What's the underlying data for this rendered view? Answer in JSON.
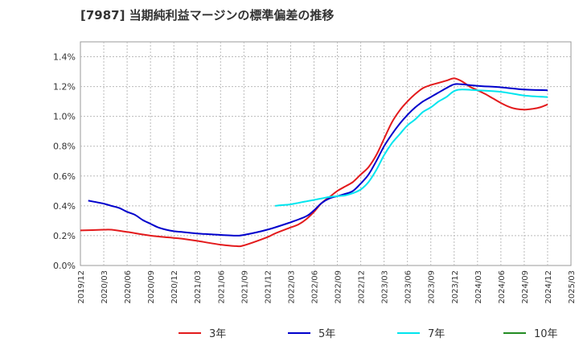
{
  "chart_data": {
    "type": "line",
    "title": "[7987]  当期純利益マージンの標準偏差の推移",
    "xlabel": "",
    "ylabel": "",
    "x_ticks": [
      "2019/12",
      "2020/03",
      "2020/06",
      "2020/09",
      "2020/12",
      "2021/03",
      "2021/06",
      "2021/09",
      "2021/12",
      "2022/03",
      "2022/06",
      "2022/09",
      "2022/12",
      "2023/03",
      "2023/06",
      "2023/09",
      "2023/12",
      "2024/03",
      "2024/06",
      "2024/09",
      "2024/12",
      "2025/03"
    ],
    "y_ticks": [
      "0.0%",
      "0.2%",
      "0.4%",
      "0.6%",
      "0.8%",
      "1.0%",
      "1.2%",
      "1.4%"
    ],
    "ylim": [
      0,
      1.5
    ],
    "grid": true,
    "legend": "bottom",
    "series": [
      {
        "name": "3年",
        "color": "#e31a1c",
        "values": [
          [
            "2019/12",
            0.235
          ],
          [
            "2020/03",
            0.24
          ],
          [
            "2020/04",
            0.24
          ],
          [
            "2020/06",
            0.225
          ],
          [
            "2020/09",
            0.2
          ],
          [
            "2020/12",
            0.185
          ],
          [
            "2021/01",
            0.18
          ],
          [
            "2021/03",
            0.165
          ],
          [
            "2021/06",
            0.14
          ],
          [
            "2021/08",
            0.13
          ],
          [
            "2021/09",
            0.135
          ],
          [
            "2021/12",
            0.19
          ],
          [
            "2022/01",
            0.215
          ],
          [
            "2022/03",
            0.255
          ],
          [
            "2022/04",
            0.275
          ],
          [
            "2022/05",
            0.31
          ],
          [
            "2022/06",
            0.36
          ],
          [
            "2022/07",
            0.42
          ],
          [
            "2022/08",
            0.46
          ],
          [
            "2022/09",
            0.5
          ],
          [
            "2022/10",
            0.53
          ],
          [
            "2022/11",
            0.56
          ],
          [
            "2022/12",
            0.61
          ],
          [
            "2023/01",
            0.66
          ],
          [
            "2023/02",
            0.74
          ],
          [
            "2023/03",
            0.85
          ],
          [
            "2023/04",
            0.96
          ],
          [
            "2023/05",
            1.04
          ],
          [
            "2023/06",
            1.1
          ],
          [
            "2023/07",
            1.15
          ],
          [
            "2023/08",
            1.19
          ],
          [
            "2023/09",
            1.21
          ],
          [
            "2023/10",
            1.225
          ],
          [
            "2023/11",
            1.24
          ],
          [
            "2023/12",
            1.255
          ],
          [
            "2024/01",
            1.235
          ],
          [
            "2024/02",
            1.2
          ],
          [
            "2024/03",
            1.175
          ],
          [
            "2024/04",
            1.15
          ],
          [
            "2024/05",
            1.12
          ],
          [
            "2024/06",
            1.09
          ],
          [
            "2024/07",
            1.065
          ],
          [
            "2024/08",
            1.05
          ],
          [
            "2024/09",
            1.045
          ],
          [
            "2024/10",
            1.05
          ],
          [
            "2024/11",
            1.06
          ],
          [
            "2024/12",
            1.08
          ]
        ]
      },
      {
        "name": "5年",
        "color": "#0000cc",
        "values": [
          [
            "2020/01",
            0.435
          ],
          [
            "2020/02",
            0.425
          ],
          [
            "2020/03",
            0.415
          ],
          [
            "2020/04",
            0.4
          ],
          [
            "2020/05",
            0.385
          ],
          [
            "2020/06",
            0.36
          ],
          [
            "2020/07",
            0.34
          ],
          [
            "2020/08",
            0.305
          ],
          [
            "2020/09",
            0.28
          ],
          [
            "2020/10",
            0.255
          ],
          [
            "2020/11",
            0.24
          ],
          [
            "2020/12",
            0.23
          ],
          [
            "2021/01",
            0.225
          ],
          [
            "2021/03",
            0.215
          ],
          [
            "2021/06",
            0.205
          ],
          [
            "2021/08",
            0.2
          ],
          [
            "2021/09",
            0.205
          ],
          [
            "2021/12",
            0.24
          ],
          [
            "2022/03",
            0.29
          ],
          [
            "2022/05",
            0.33
          ],
          [
            "2022/06",
            0.37
          ],
          [
            "2022/07",
            0.42
          ],
          [
            "2022/08",
            0.45
          ],
          [
            "2022/09",
            0.465
          ],
          [
            "2022/10",
            0.48
          ],
          [
            "2022/11",
            0.5
          ],
          [
            "2022/12",
            0.55
          ],
          [
            "2023/01",
            0.61
          ],
          [
            "2023/02",
            0.7
          ],
          [
            "2023/03",
            0.8
          ],
          [
            "2023/04",
            0.88
          ],
          [
            "2023/05",
            0.95
          ],
          [
            "2023/06",
            1.01
          ],
          [
            "2023/07",
            1.06
          ],
          [
            "2023/08",
            1.1
          ],
          [
            "2023/09",
            1.13
          ],
          [
            "2023/10",
            1.16
          ],
          [
            "2023/11",
            1.19
          ],
          [
            "2023/12",
            1.215
          ],
          [
            "2024/01",
            1.215
          ],
          [
            "2024/03",
            1.205
          ],
          [
            "2024/06",
            1.195
          ],
          [
            "2024/09",
            1.18
          ],
          [
            "2024/12",
            1.175
          ]
        ]
      },
      {
        "name": "7年",
        "color": "#00e5ee",
        "values": [
          [
            "2022/01",
            0.4
          ],
          [
            "2022/02",
            0.405
          ],
          [
            "2022/03",
            0.41
          ],
          [
            "2022/04",
            0.42
          ],
          [
            "2022/05",
            0.43
          ],
          [
            "2022/06",
            0.44
          ],
          [
            "2022/07",
            0.45
          ],
          [
            "2022/08",
            0.46
          ],
          [
            "2022/09",
            0.465
          ],
          [
            "2022/10",
            0.47
          ],
          [
            "2022/11",
            0.485
          ],
          [
            "2022/12",
            0.51
          ],
          [
            "2023/01",
            0.56
          ],
          [
            "2023/02",
            0.64
          ],
          [
            "2023/03",
            0.74
          ],
          [
            "2023/04",
            0.82
          ],
          [
            "2023/05",
            0.88
          ],
          [
            "2023/06",
            0.94
          ],
          [
            "2023/07",
            0.98
          ],
          [
            "2023/08",
            1.03
          ],
          [
            "2023/09",
            1.06
          ],
          [
            "2023/10",
            1.1
          ],
          [
            "2023/11",
            1.13
          ],
          [
            "2023/12",
            1.17
          ],
          [
            "2024/01",
            1.18
          ],
          [
            "2024/03",
            1.175
          ],
          [
            "2024/06",
            1.165
          ],
          [
            "2024/09",
            1.14
          ],
          [
            "2024/12",
            1.13
          ]
        ]
      },
      {
        "name": "10年",
        "color": "#228b22",
        "values": []
      }
    ]
  }
}
